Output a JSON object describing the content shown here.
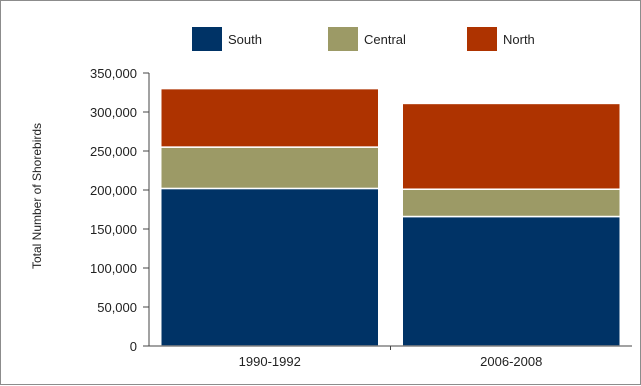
{
  "chart_data": {
    "type": "bar",
    "stacked": true,
    "categories": [
      "1990-1992",
      "2006-2008"
    ],
    "series": [
      {
        "name": "South",
        "color": "#003366",
        "values": [
          202000,
          166000
        ]
      },
      {
        "name": "Central",
        "color": "#9c9a66",
        "values": [
          53000,
          35000
        ]
      },
      {
        "name": "North",
        "color": "#ae3300",
        "values": [
          75000,
          110000
        ]
      }
    ],
    "ylabel": "Total Number of Shorebirds",
    "xlabel": "",
    "ylim": [
      0,
      350000
    ],
    "yticks": [
      0,
      50000,
      100000,
      150000,
      200000,
      250000,
      300000,
      350000
    ],
    "ytick_labels": [
      "0",
      "50,000",
      "100,000",
      "150,000",
      "200,000",
      "250,000",
      "300,000",
      "350,000"
    ],
    "grid": false,
    "legend_position": "top"
  }
}
